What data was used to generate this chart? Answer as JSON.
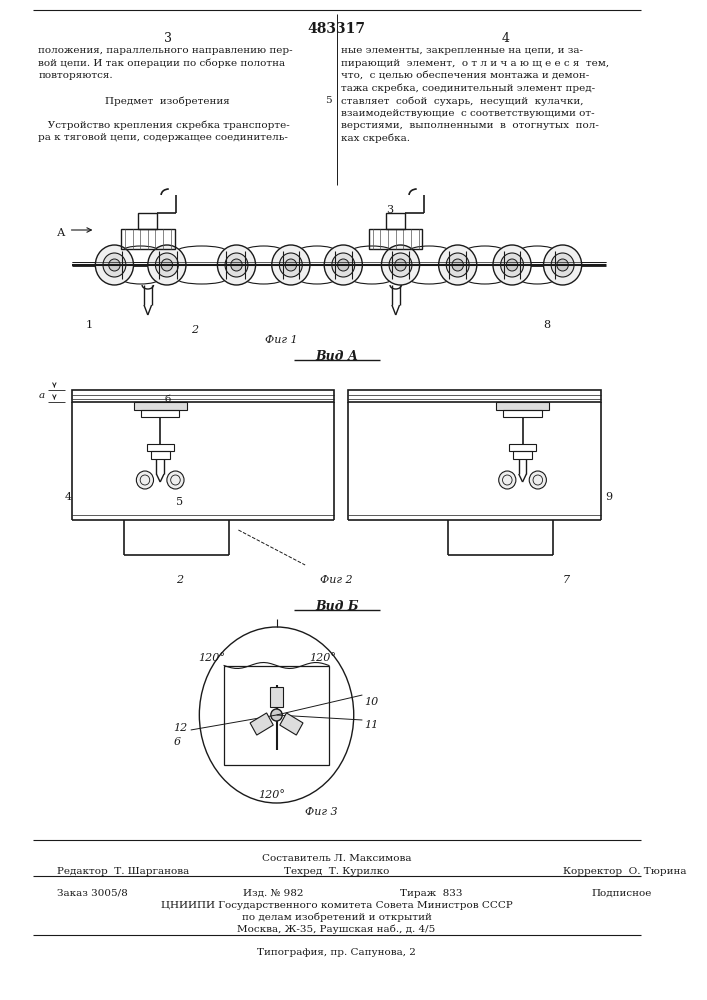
{
  "bg_color": "#ffffff",
  "text_color": "#1a1a1a",
  "line_color": "#1a1a1a",
  "patent_number": "483317",
  "page_left": "3",
  "page_right": "4",
  "col_left_text": [
    "положения, параллельного направлению пер-",
    "вой цепи. И так операции по сборке полотна",
    "повторяются.",
    "",
    "Предмет  изобретения",
    "",
    "   Устройство крепления скребка транспорте-",
    "ра к тяговой цепи, содержащее соединитель-"
  ],
  "col_right_text": [
    "ные элементы, закрепленные на цепи, и за-",
    "пирающий  элемент,  о т л и ч а ю щ е е с я  тем,",
    "что,  с целью обеспечения монтажа и демон-",
    "тажа скребка, соединительный элемент пред-",
    "ставляет  собой  сухарь,  несущий  кулачки,",
    "взаимодействующие  с соответствующими от-",
    "верстиями,  выполненными  в  отогнутых  пол-",
    "ках скребка."
  ],
  "line5_marker": "5",
  "fig1_label": "Фиг 1",
  "fig2_label": "Фиг 2",
  "fig3_label": "Фиг 3",
  "vid_a_label": "Вид А",
  "vid_b_label": "Вид Б",
  "footer_composer": "Составитель Л. Максимова",
  "footer_editor": "Редактор  Т. Шарганова",
  "footer_tech": "Техред  Т. Курилко",
  "footer_corrector": "Корректор  О. Тюрина",
  "footer_order": "Заказ 3005/8",
  "footer_izd": "Изд. № 982",
  "footer_tirazh": "Тираж  833",
  "footer_podpis": "Подписное",
  "footer_org1": "ЦНИИПИ Государственного комитета Совета Министров СССР",
  "footer_org2": "по делам изобретений и открытий",
  "footer_org3": "Москва, Ж-35, Раушская наб., д. 4/5",
  "footer_typo": "Типография, пр. Сапунова, 2"
}
